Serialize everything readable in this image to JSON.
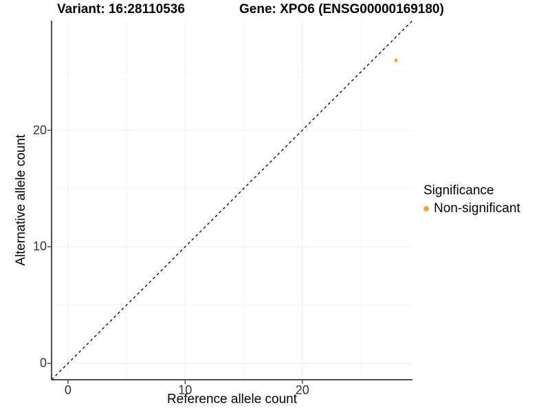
{
  "chart_data": {
    "type": "scatter",
    "titles": {
      "variant": "Variant: 16:28110536",
      "gene": "Gene: XPO6 (ENSG00000169180)"
    },
    "xlabel": "Reference allele count",
    "ylabel": "Alternative allele count",
    "xlim": [
      -1.4,
      29.4
    ],
    "ylim": [
      -1.4,
      29.4
    ],
    "x_ticks": [
      0,
      10,
      20
    ],
    "y_ticks": [
      0,
      10,
      20
    ],
    "x_minor_gridlines": [
      5,
      15,
      25
    ],
    "y_minor_gridlines": [
      5,
      15,
      25
    ],
    "grid": "on",
    "points": [
      {
        "x": 28,
        "y": 26,
        "significance": "Non-significant",
        "color": "#F8A437"
      }
    ],
    "reference_line": {
      "type": "identity",
      "slope": 1,
      "intercept": 0,
      "linetype": "dashed",
      "color": "#000000"
    },
    "legend": {
      "title": "Significance",
      "position": "right",
      "items": [
        {
          "label": "Non-significant",
          "color": "#F8A437"
        }
      ]
    },
    "style": {
      "background": "#ffffff",
      "major_gridline_color": "#ececec",
      "minor_gridline_color": "#f5f5f5",
      "axis_line_color": "#4d4d4d",
      "tick_mark_color": "#333333",
      "tick_label_color": "#333333",
      "title_color": "#000000"
    }
  }
}
